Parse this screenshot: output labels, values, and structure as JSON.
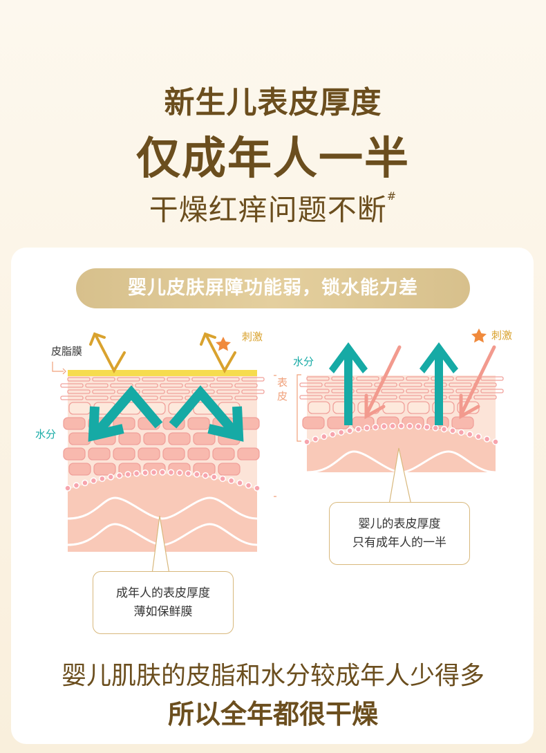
{
  "header": {
    "line1": "新生儿表皮厚度",
    "line2": "仅成年人一半",
    "line3": "干燥红痒问题不断",
    "line3_mark": "#"
  },
  "banner": "婴儿皮肤屏障功能弱，锁水能力差",
  "adult_diagram": {
    "sebum_label": "皮脂膜",
    "stimulus_label": "刺激",
    "moisture_label": "水分",
    "epidermis_label": "表皮",
    "callout": [
      "成年人的表皮厚度",
      "薄如保鲜膜"
    ]
  },
  "baby_diagram": {
    "stimulus_label": "刺激",
    "moisture_label": "水分",
    "epidermis_label": "表皮",
    "callout": [
      "婴儿的表皮厚度",
      "只有成年人的一半"
    ]
  },
  "footer": {
    "line1": "婴儿肌肤的皮脂和水分较成年人少得多",
    "line2": "所以全年都很干燥"
  },
  "colors": {
    "title": "#6b4e1e",
    "banner": "#d7c08c",
    "moisture_arrow": "#16aaa5",
    "stimulus_arrow_adult": "#d9a22e",
    "stimulus_arrow_baby": "#f29a8e",
    "skin": "#f9c9b8",
    "sebum": "#f6dc4e",
    "star": "#f08a3c"
  }
}
